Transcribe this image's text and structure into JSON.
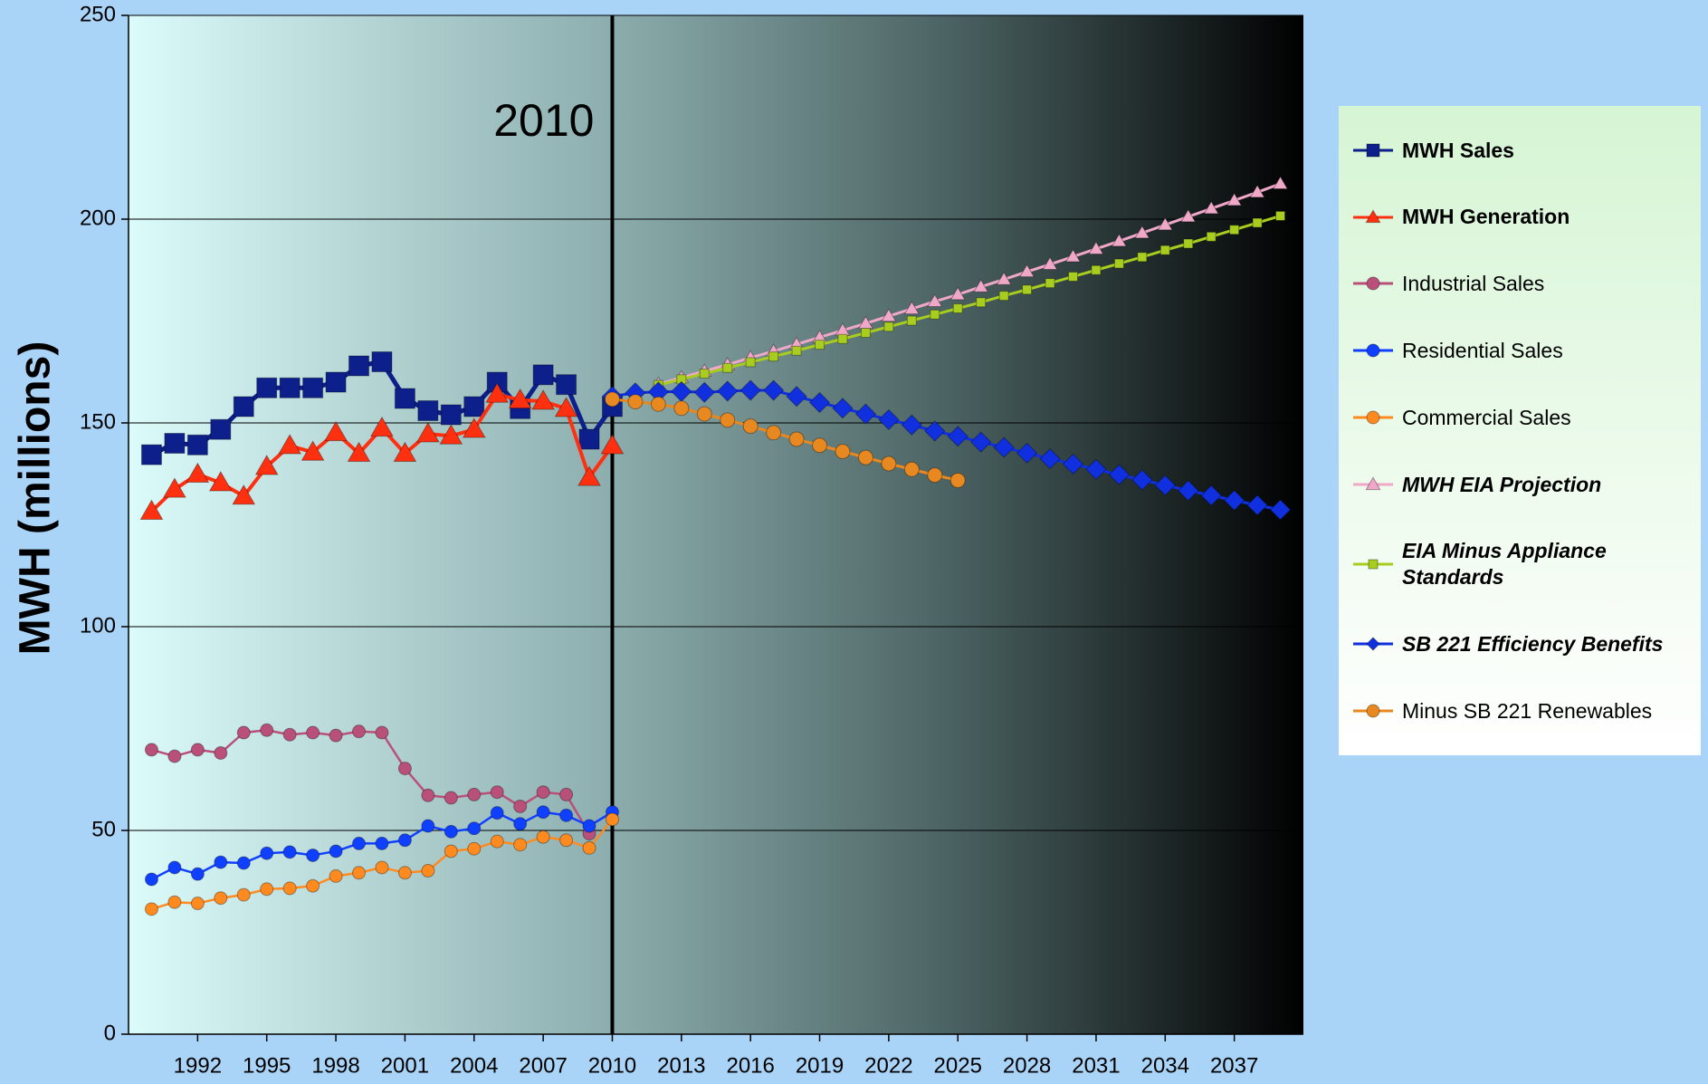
{
  "chart_data": {
    "type": "line",
    "y_label": "MWH (millions)",
    "annotations": [
      {
        "text": "2010",
        "x": 2010
      }
    ],
    "xlim": [
      1989,
      2040
    ],
    "xticks": [
      1992,
      1995,
      1998,
      2001,
      2004,
      2007,
      2010,
      2013,
      2016,
      2019,
      2022,
      2025,
      2028,
      2031,
      2034,
      2037
    ],
    "ylim": [
      0,
      250
    ],
    "yticks": [
      0,
      50,
      100,
      150,
      200,
      250
    ],
    "grid": true,
    "legend": "right",
    "x": [
      1990,
      1991,
      1992,
      1993,
      1994,
      1995,
      1996,
      1997,
      1998,
      1999,
      2000,
      2001,
      2002,
      2003,
      2004,
      2005,
      2006,
      2007,
      2008,
      2009,
      2010,
      2011,
      2012,
      2013,
      2014,
      2015,
      2016,
      2017,
      2018,
      2019,
      2020,
      2021,
      2022,
      2023,
      2024,
      2025,
      2026,
      2027,
      2028,
      2029,
      2030,
      2031,
      2032,
      2033,
      2034,
      2035,
      2036,
      2037,
      2038,
      2039
    ],
    "series": [
      {
        "name": "MWH Sales",
        "color": "#0d1f8a",
        "marker": "square",
        "values": [
          142.2,
          145,
          144.6,
          148.4,
          154,
          158.6,
          158.6,
          158.6,
          160,
          164,
          165,
          156,
          153,
          152,
          154,
          160,
          153.5,
          161.8,
          159.4,
          146,
          154,
          null,
          null,
          null,
          null,
          null,
          null,
          null,
          null,
          null,
          null,
          null,
          null,
          null,
          null,
          null,
          null,
          null,
          null,
          null,
          null,
          null,
          null,
          null,
          null,
          null,
          null,
          null,
          null,
          null
        ]
      },
      {
        "name": "MWH Generation",
        "color": "#ff3010",
        "marker": "triangle",
        "values": [
          128.3,
          133.7,
          137.4,
          135.3,
          132,
          139.3,
          144.4,
          142.8,
          147.6,
          142.5,
          148.7,
          142.5,
          147.3,
          146.8,
          148.4,
          157,
          155.6,
          155.3,
          153.5,
          136.6,
          144.4,
          null,
          null,
          null,
          null,
          null,
          null,
          null,
          null,
          null,
          null,
          null,
          null,
          null,
          null,
          null,
          null,
          null,
          null,
          null,
          null,
          null,
          null,
          null,
          null,
          null,
          null,
          null,
          null,
          null
        ]
      },
      {
        "name": "Industrial Sales",
        "color": "#b8507a",
        "marker": "circle",
        "values": [
          69.8,
          68.2,
          69.8,
          69,
          74,
          74.6,
          73.5,
          74,
          73.3,
          74.3,
          74,
          65.2,
          58.6,
          58,
          58.8,
          59.4,
          55.9,
          59.4,
          58.8,
          49.2,
          null,
          null,
          null,
          null,
          null,
          null,
          null,
          null,
          null,
          null,
          null,
          null,
          null,
          null,
          null,
          null,
          null,
          null,
          null,
          null,
          null,
          null,
          null,
          null,
          null,
          null,
          null,
          null,
          null,
          null
        ]
      },
      {
        "name": "Residential Sales",
        "color": "#1040ff",
        "marker": "circle",
        "values": [
          38,
          40.9,
          39.3,
          42.2,
          42,
          44.4,
          44.7,
          43.9,
          44.9,
          46.8,
          46.8,
          47.6,
          51.1,
          49.7,
          50.5,
          54.3,
          51.6,
          54.5,
          53.7,
          51.1,
          54.5,
          null,
          null,
          null,
          null,
          null,
          null,
          null,
          null,
          null,
          null,
          null,
          null,
          null,
          null,
          null,
          null,
          null,
          null,
          null,
          null,
          null,
          null,
          null,
          null,
          null,
          null,
          null,
          null,
          null
        ]
      },
      {
        "name": "Commercial Sales",
        "color": "#ff8a20",
        "marker": "circle",
        "values": [
          30.7,
          32.4,
          32.1,
          33.4,
          34.2,
          35.6,
          35.8,
          36.4,
          38.8,
          39.6,
          40.9,
          39.6,
          40.1,
          44.9,
          45.5,
          47.3,
          46.5,
          48.4,
          47.6,
          45.7,
          52.7,
          null,
          null,
          null,
          null,
          null,
          null,
          null,
          null,
          null,
          null,
          null,
          null,
          null,
          null,
          null,
          null,
          null,
          null,
          null,
          null,
          null,
          null,
          null,
          null,
          null,
          null,
          null,
          null,
          null
        ]
      },
      {
        "name": "MWH EIA Projection",
        "color": "#f0a8c8",
        "marker": "triangle",
        "values": [
          null,
          null,
          null,
          null,
          null,
          null,
          null,
          null,
          null,
          null,
          null,
          null,
          null,
          null,
          null,
          null,
          null,
          null,
          null,
          null,
          null,
          null,
          159.5,
          161.1,
          162.7,
          164.3,
          166,
          167.6,
          169.3,
          171,
          172.7,
          174.4,
          176.2,
          178,
          179.8,
          181.5,
          183.4,
          185.2,
          187.1,
          188.9,
          190.8,
          192.7,
          194.6,
          196.6,
          198.6,
          200.6,
          202.6,
          204.6,
          206.6,
          208.7
        ]
      },
      {
        "name": "EIA Minus Appliance Standards",
        "color": "#a8cc20",
        "marker": "square",
        "values": [
          null,
          null,
          null,
          null,
          null,
          null,
          null,
          null,
          null,
          null,
          null,
          null,
          null,
          null,
          null,
          null,
          null,
          null,
          null,
          null,
          null,
          null,
          159.3,
          160.7,
          162.1,
          163.5,
          164.9,
          166.3,
          167.7,
          169.2,
          170.6,
          172.1,
          173.6,
          175.1,
          176.6,
          178.1,
          179.6,
          181.2,
          182.7,
          184.3,
          185.9,
          187.5,
          189.1,
          190.7,
          192.4,
          194,
          195.7,
          197.4,
          199.1,
          200.8
        ]
      },
      {
        "name": "SB 221 Efficiency Benefits",
        "color": "#1030e0",
        "marker": "diamond",
        "values": [
          null,
          null,
          null,
          null,
          null,
          null,
          null,
          null,
          null,
          null,
          null,
          null,
          null,
          null,
          null,
          null,
          null,
          null,
          null,
          null,
          156.5,
          157.4,
          157.6,
          157.7,
          157.5,
          157.8,
          158,
          158,
          156.5,
          155,
          153.6,
          152.2,
          150.8,
          149.5,
          148,
          146.7,
          145.3,
          144,
          142.6,
          141.2,
          139.9,
          138.6,
          137.3,
          136,
          134.7,
          133.4,
          132.2,
          131,
          129.8,
          128.7
        ]
      },
      {
        "name": "Minus SB 221 Renewables",
        "color": "#e88820",
        "marker": "circle",
        "values": [
          null,
          null,
          null,
          null,
          null,
          null,
          null,
          null,
          null,
          null,
          null,
          null,
          null,
          null,
          null,
          null,
          null,
          null,
          null,
          null,
          155.8,
          155.2,
          154.6,
          153.6,
          152.2,
          150.7,
          149.2,
          147.6,
          146,
          144.5,
          143,
          141.5,
          140,
          138.6,
          137.2,
          135.9,
          null,
          null,
          null,
          null,
          null,
          null,
          null,
          null,
          null,
          null,
          null,
          null,
          null,
          null
        ]
      }
    ]
  }
}
